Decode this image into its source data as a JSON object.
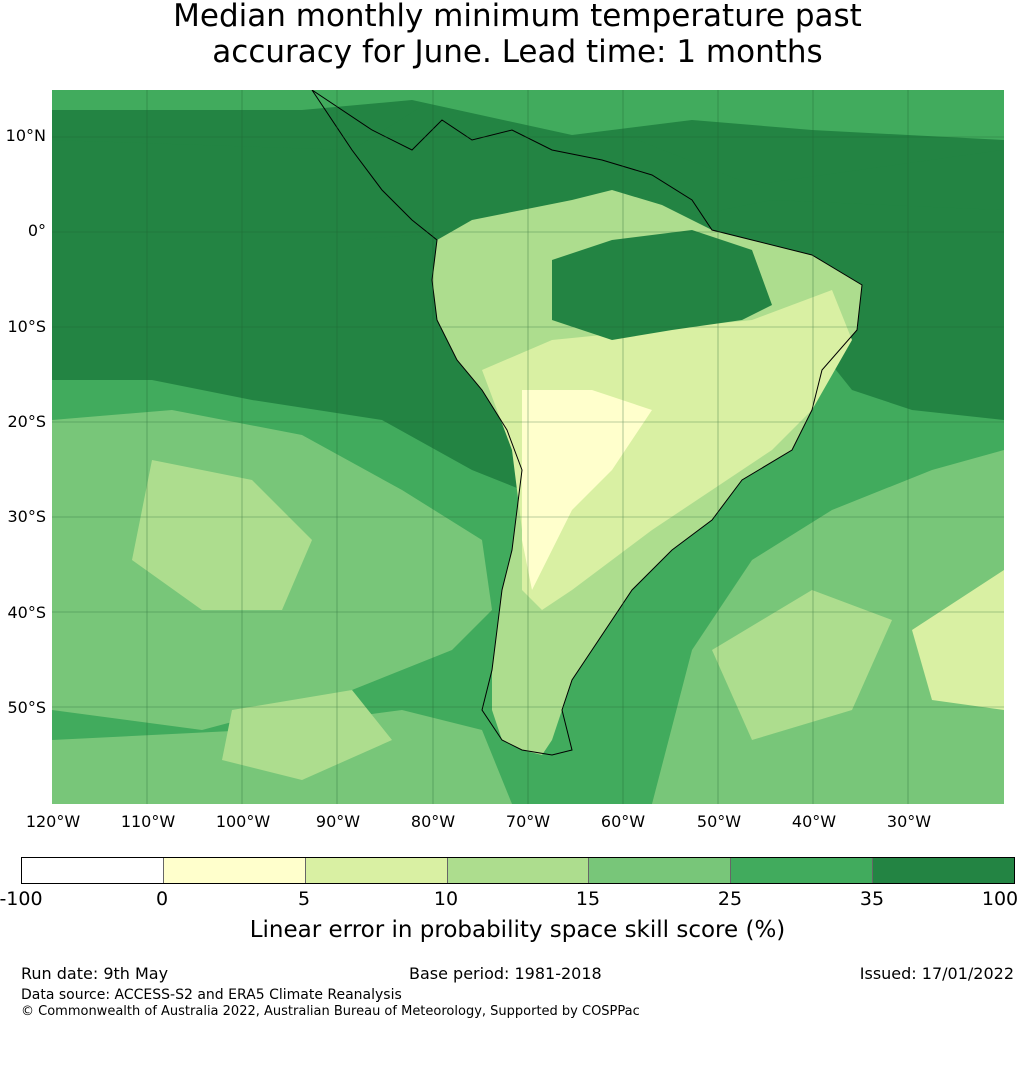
{
  "title": {
    "line1": "Median monthly minimum temperature past",
    "line2": "accuracy for June. Lead time: 1 months"
  },
  "latitudes": [
    "10°N",
    "0°",
    "10°S",
    "20°S",
    "30°S",
    "40°S",
    "50°S"
  ],
  "longitudes": [
    "120°W",
    "110°W",
    "100°W",
    "90°W",
    "80°W",
    "70°W",
    "60°W",
    "50°W",
    "40°W",
    "30°W"
  ],
  "colorbar": {
    "label": "Linear error in probability space skill score (%)",
    "ticks": [
      "-100",
      "0",
      "5",
      "10",
      "15",
      "25",
      "35",
      "100"
    ],
    "colors": [
      "#ffffff",
      "#ffffcc",
      "#d9f0a3",
      "#addd8e",
      "#78c679",
      "#41ab5d",
      "#238443"
    ]
  },
  "footer": {
    "run_date": "Run date: 9th May",
    "base_period": "Base period: 1981-2018",
    "issued": "Issued: 17/01/2022",
    "data_source": "Data source: ACCESS-S2 and ERA5 Climate Reanalysis",
    "copyright": "© Commonwealth of Australia 2022, Australian Bureau of Meteorology, Supported by COSPPac"
  }
}
